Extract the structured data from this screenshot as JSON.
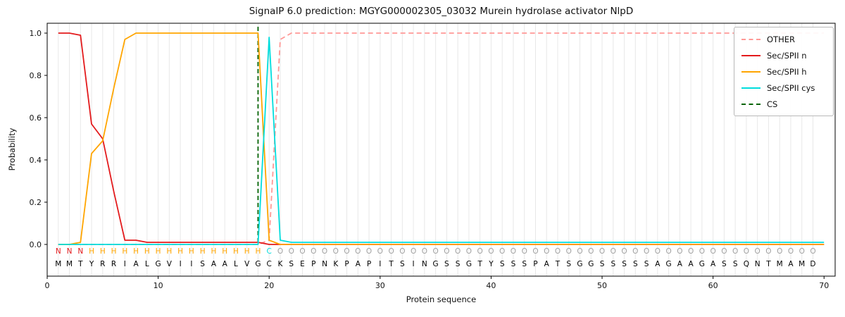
{
  "chart_data": {
    "type": "line",
    "title": "SignalP 6.0 prediction: MGYG000002305_03032 Murein hydrolase activator NlpD",
    "xlabel": "Protein sequence",
    "ylabel": "Probability",
    "xlim": [
      0,
      71
    ],
    "ylim": [
      0,
      1.05
    ],
    "xticks": [
      0,
      10,
      20,
      30,
      40,
      50,
      60,
      70
    ],
    "yticks": [
      0.0,
      0.2,
      0.4,
      0.6,
      0.8,
      1.0
    ],
    "grid": "vertical-per-residue",
    "legend_position": "upper right",
    "x_start": 1,
    "colors": {
      "grid": "#e8e8e8",
      "spine": "#000000",
      "sequence_text": "#000000"
    },
    "series": [
      {
        "name": "OTHER",
        "color": "#ff9896",
        "dashed": true,
        "values": [
          0,
          0,
          0,
          0,
          0,
          0,
          0,
          0,
          0,
          0,
          0,
          0,
          0,
          0,
          0,
          0,
          0,
          0,
          0,
          0.02,
          0.97,
          1,
          1,
          1,
          1,
          1,
          1,
          1,
          1,
          1,
          1,
          1,
          1,
          1,
          1,
          1,
          1,
          1,
          1,
          1,
          1,
          1,
          1,
          1,
          1,
          1,
          1,
          1,
          1,
          1,
          1,
          1,
          1,
          1,
          1,
          1,
          1,
          1,
          1,
          1,
          1,
          1,
          1,
          1,
          1,
          1,
          1,
          1,
          1,
          1
        ]
      },
      {
        "name": "Sec/SPII n",
        "color": "#e31a1c",
        "dashed": false,
        "values": [
          1,
          1,
          0.99,
          0.57,
          0.5,
          0.25,
          0.02,
          0.02,
          0.01,
          0.01,
          0.01,
          0.01,
          0.01,
          0.01,
          0.01,
          0.01,
          0.01,
          0.01,
          0.01,
          0,
          0,
          0,
          0,
          0,
          0,
          0,
          0,
          0,
          0,
          0,
          0,
          0,
          0,
          0,
          0,
          0,
          0,
          0,
          0,
          0,
          0,
          0,
          0,
          0,
          0,
          0,
          0,
          0,
          0,
          0,
          0,
          0,
          0,
          0,
          0,
          0,
          0,
          0,
          0,
          0,
          0,
          0,
          0,
          0,
          0,
          0,
          0,
          0,
          0,
          0
        ]
      },
      {
        "name": "Sec/SPII h",
        "color": "#ffa500",
        "dashed": false,
        "values": [
          0,
          0,
          0.01,
          0.43,
          0.49,
          0.74,
          0.97,
          1,
          1,
          1,
          1,
          1,
          1,
          1,
          1,
          1,
          1,
          1,
          1,
          0.02,
          0,
          0,
          0,
          0,
          0,
          0,
          0,
          0,
          0,
          0,
          0,
          0,
          0,
          0,
          0,
          0,
          0,
          0,
          0,
          0,
          0,
          0,
          0,
          0,
          0,
          0,
          0,
          0,
          0,
          0,
          0,
          0,
          0,
          0,
          0,
          0,
          0,
          0,
          0,
          0,
          0,
          0,
          0,
          0,
          0,
          0,
          0,
          0,
          0,
          0
        ]
      },
      {
        "name": "Sec/SPII cys",
        "color": "#00dddd",
        "dashed": false,
        "values": [
          0,
          0,
          0,
          0,
          0,
          0,
          0,
          0,
          0,
          0,
          0,
          0,
          0,
          0,
          0,
          0,
          0,
          0,
          0,
          0.98,
          0.02,
          0.01,
          0.01,
          0.01,
          0.01,
          0.01,
          0.01,
          0.01,
          0.01,
          0.01,
          0.01,
          0.01,
          0.01,
          0.01,
          0.01,
          0.01,
          0.01,
          0.01,
          0.01,
          0.01,
          0.01,
          0.01,
          0.01,
          0.01,
          0.01,
          0.01,
          0.01,
          0.01,
          0.01,
          0.01,
          0.01,
          0.01,
          0.01,
          0.01,
          0.01,
          0.01,
          0.01,
          0.01,
          0.01,
          0.01,
          0.01,
          0.01,
          0.01,
          0.01,
          0.01,
          0.01,
          0.01,
          0.01,
          0.01,
          0.01
        ]
      }
    ],
    "cs_marker": {
      "label": "CS",
      "x": 19,
      "color": "#006400",
      "dashed": true
    },
    "sequence": "MMTYRRIALGVIISAALVGCKSEPNKPAPITSINGSSGTYSSSPATSGGSSSSSAGAAGASSQNTMAMD",
    "region_labels": "NNNHHHHHHHHHHHHHHHHCOOOOOOOOOOOOOOOOOOOOOOOOOOOOOOOOOOOOOOOOOOOOOOOOO",
    "region_colors": {
      "N": "#e31a1c",
      "H": "#ffa500",
      "C": "#00dddd",
      "O": "#a0a0a0"
    },
    "legend": [
      {
        "label": "OTHER",
        "color": "#ff9896",
        "dashed": true
      },
      {
        "label": "Sec/SPII n",
        "color": "#e31a1c",
        "dashed": false
      },
      {
        "label": "Sec/SPII h",
        "color": "#ffa500",
        "dashed": false
      },
      {
        "label": "Sec/SPII cys",
        "color": "#00dddd",
        "dashed": false
      },
      {
        "label": "CS",
        "color": "#006400",
        "dashed": true
      }
    ]
  }
}
